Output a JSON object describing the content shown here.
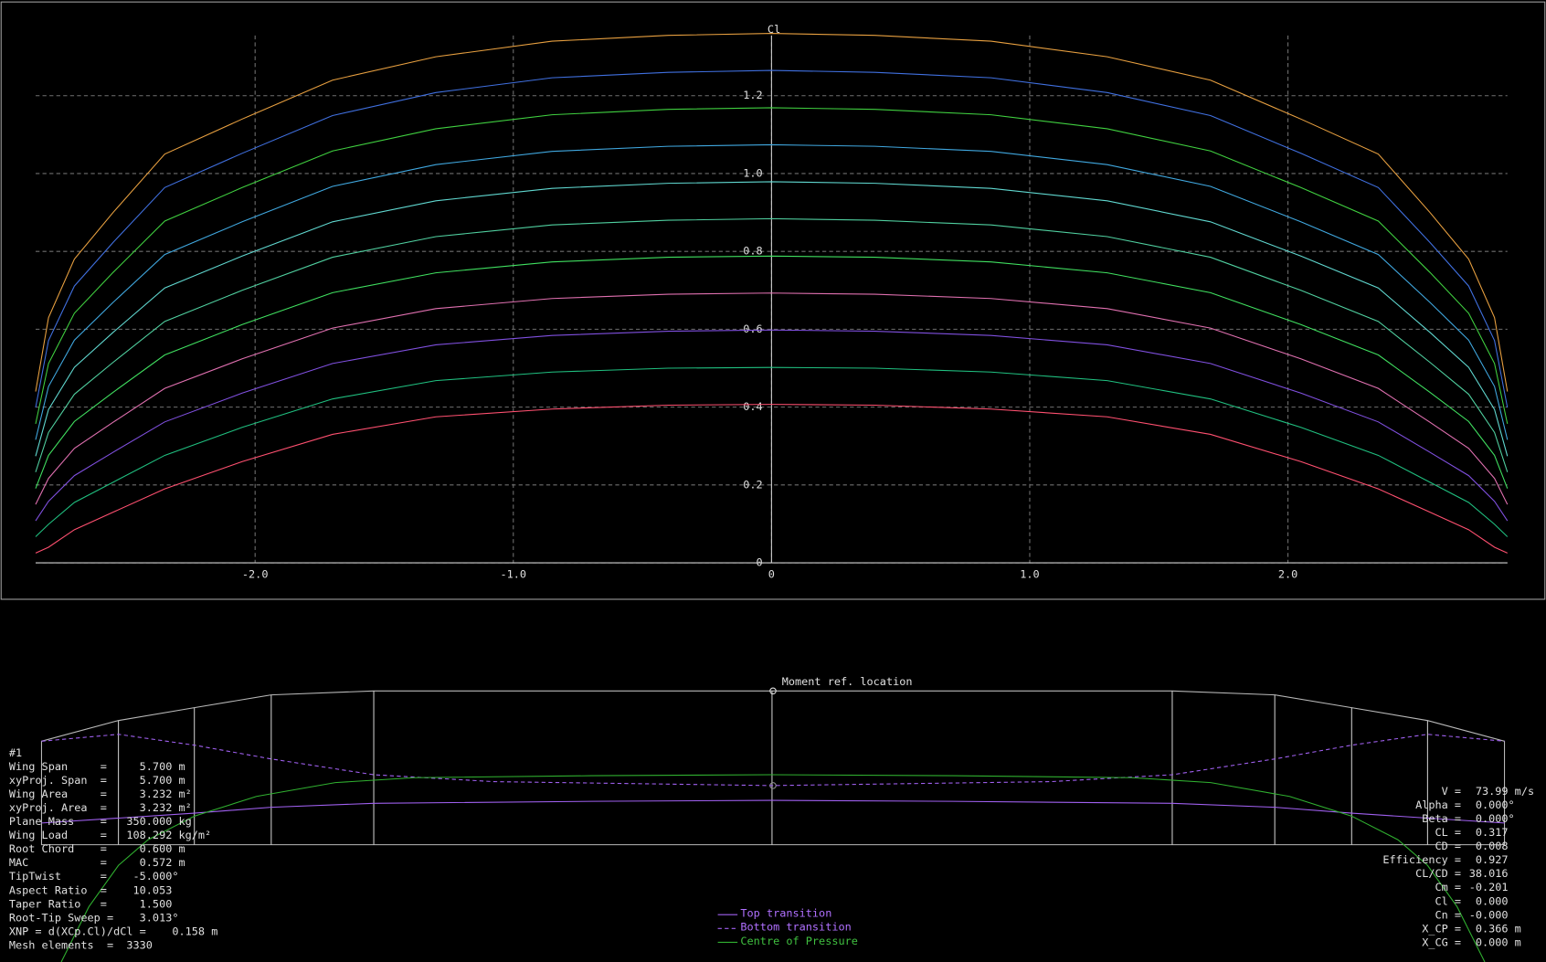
{
  "chart_data": {
    "type": "line",
    "title": "Cl",
    "x": [
      -2.85,
      -2.8,
      -2.7,
      -2.55,
      -2.35,
      -2.05,
      -1.7,
      -1.3,
      -0.85,
      -0.4,
      0,
      0.4,
      0.85,
      1.3,
      1.7,
      2.05,
      2.35,
      2.55,
      2.7,
      2.8,
      2.85
    ],
    "xlim": [
      -2.85,
      2.85
    ],
    "xticks": [
      {
        "value": -2,
        "label": "-2.0"
      },
      {
        "value": -1,
        "label": "-1.0"
      },
      0,
      {
        "value": 1,
        "label": "1.0"
      },
      {
        "value": 2,
        "label": "2.0"
      }
    ],
    "ylim": [
      0,
      1.38
    ],
    "yticks": [
      0,
      0.2,
      0.4,
      0.6,
      0.8,
      {
        "value": 1,
        "label": "1.0"
      },
      1.2
    ],
    "grid": true,
    "series": [
      {
        "color": "#ff5070",
        "values": [
          0.025,
          0.04,
          0.085,
          0.13,
          0.19,
          0.26,
          0.33,
          0.375,
          0.395,
          0.405,
          0.407,
          0.405,
          0.395,
          0.375,
          0.33,
          0.26,
          0.19,
          0.13,
          0.085,
          0.04,
          0.025
        ]
      },
      {
        "color": "#20c080",
        "values": [
          0.067,
          0.099,
          0.155,
          0.207,
          0.276,
          0.348,
          0.421,
          0.468,
          0.49,
          0.5,
          0.502,
          0.5,
          0.49,
          0.468,
          0.421,
          0.348,
          0.276,
          0.207,
          0.155,
          0.099,
          0.067
        ]
      },
      {
        "color": "#8050e0",
        "values": [
          0.108,
          0.158,
          0.224,
          0.284,
          0.362,
          0.436,
          0.512,
          0.56,
          0.584,
          0.595,
          0.598,
          0.595,
          0.584,
          0.56,
          0.512,
          0.436,
          0.362,
          0.284,
          0.224,
          0.158,
          0.108
        ]
      },
      {
        "color": "#e070b0",
        "values": [
          0.15,
          0.217,
          0.294,
          0.361,
          0.448,
          0.524,
          0.603,
          0.653,
          0.679,
          0.69,
          0.693,
          0.69,
          0.679,
          0.653,
          0.603,
          0.524,
          0.448,
          0.361,
          0.294,
          0.217,
          0.15
        ]
      },
      {
        "color": "#40e060",
        "values": [
          0.191,
          0.276,
          0.363,
          0.438,
          0.534,
          0.612,
          0.694,
          0.745,
          0.773,
          0.785,
          0.788,
          0.785,
          0.773,
          0.745,
          0.694,
          0.612,
          0.534,
          0.438,
          0.363,
          0.276,
          0.191
        ]
      },
      {
        "color": "#50d0a0",
        "values": [
          0.233,
          0.335,
          0.433,
          0.515,
          0.62,
          0.7,
          0.785,
          0.838,
          0.868,
          0.88,
          0.884,
          0.88,
          0.868,
          0.838,
          0.785,
          0.7,
          0.62,
          0.515,
          0.433,
          0.335,
          0.233
        ]
      },
      {
        "color": "#60d8d0",
        "values": [
          0.274,
          0.394,
          0.502,
          0.592,
          0.706,
          0.788,
          0.876,
          0.93,
          0.962,
          0.975,
          0.979,
          0.975,
          0.962,
          0.93,
          0.876,
          0.788,
          0.706,
          0.592,
          0.502,
          0.394,
          0.274
        ]
      },
      {
        "color": "#40a8e0",
        "values": [
          0.316,
          0.453,
          0.572,
          0.669,
          0.792,
          0.876,
          0.967,
          1.023,
          1.057,
          1.07,
          1.074,
          1.07,
          1.057,
          1.023,
          0.967,
          0.876,
          0.792,
          0.669,
          0.572,
          0.453,
          0.316
        ]
      },
      {
        "color": "#40d040",
        "values": [
          0.357,
          0.512,
          0.641,
          0.746,
          0.878,
          0.964,
          1.058,
          1.115,
          1.151,
          1.165,
          1.169,
          1.165,
          1.151,
          1.115,
          1.058,
          0.964,
          0.878,
          0.746,
          0.641,
          0.512,
          0.357
        ]
      },
      {
        "color": "#4070e0",
        "values": [
          0.399,
          0.571,
          0.711,
          0.823,
          0.964,
          1.052,
          1.149,
          1.208,
          1.246,
          1.26,
          1.265,
          1.26,
          1.246,
          1.208,
          1.149,
          1.052,
          0.964,
          0.823,
          0.711,
          0.571,
          0.399
        ]
      },
      {
        "color": "#e8a040",
        "values": [
          0.44,
          0.63,
          0.78,
          0.9,
          1.05,
          1.14,
          1.24,
          1.3,
          1.34,
          1.355,
          1.36,
          1.355,
          1.34,
          1.3,
          1.24,
          1.14,
          1.05,
          0.9,
          0.78,
          0.63,
          0.44
        ]
      }
    ]
  },
  "planform": {
    "moment_ref": "Moment ref. location",
    "legend": [
      "Top transition",
      "Bottom transition",
      "Centre of Pressure"
    ]
  },
  "wing_info": [
    "#1",
    "Wing Span     =     5.700 m",
    "xyProj. Span  =     5.700 m",
    "Wing Area     =     3.232 m²",
    "xyProj. Area  =     3.232 m²",
    "Plane Mass    =   350.000 kg",
    "Wing Load     =   108.292 kg/m²",
    "Root Chord    =     0.600 m",
    "MAC           =     0.572 m",
    "TipTwist      =    -5.000°",
    "Aspect Ratio  =    10.053",
    "Taper Ratio   =     1.500",
    "Root-Tip Sweep =    3.013°",
    "XNP = d(XCp.Cl)/dCl =    0.158 m",
    "Mesh elements  =  3330"
  ],
  "results": [
    {
      "label": "V =",
      "value": " 73.99 m/s"
    },
    {
      "label": "Alpha =",
      "value": " 0.000°"
    },
    {
      "label": "Beta =",
      "value": " 0.000°"
    },
    {
      "label": "CL =",
      "value": " 0.317"
    },
    {
      "label": "CD =",
      "value": " 0.008"
    },
    {
      "label": "Efficiency =",
      "value": " 0.927"
    },
    {
      "label": "CL/CD =",
      "value": "38.016"
    },
    {
      "label": "Cm =",
      "value": "-0.201"
    },
    {
      "label": "Cl =",
      "value": " 0.000"
    },
    {
      "label": "Cn =",
      "value": "-0.000"
    },
    {
      "label": "X_CP =",
      "value": " 0.366 m"
    },
    {
      "label": "X_CG =",
      "value": " 0.000 m"
    }
  ]
}
